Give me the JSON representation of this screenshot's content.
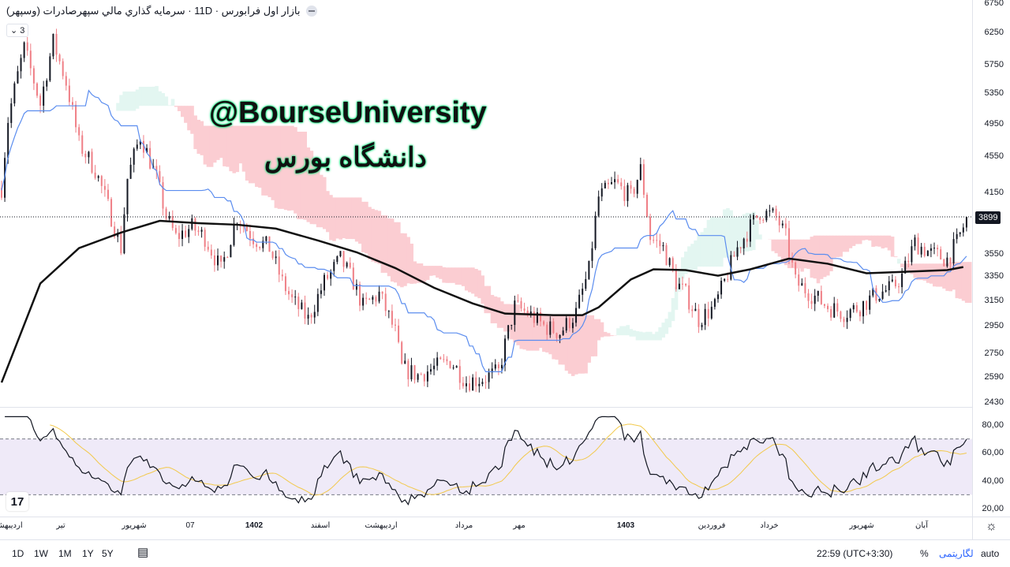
{
  "header": {
    "title": "بازار اول فرابورس · 11D · سرمايه گذاري مالي سپهرصادرات (وسپهر)",
    "indicator_count": "3"
  },
  "watermark": {
    "handle": "@BourseUniversity",
    "name": "دانشگاه بورس"
  },
  "price_axis": {
    "ticks": [
      "6750",
      "6250",
      "5750",
      "5350",
      "4950",
      "4550",
      "4150",
      "3550",
      "3350",
      "3150",
      "2950",
      "2750",
      "2590",
      "2430"
    ],
    "last_price": "3899"
  },
  "rsi_axis": {
    "ticks": [
      "80,00",
      "60,00",
      "40,00",
      "20,00"
    ]
  },
  "time_axis": {
    "labels": [
      {
        "t": "اردیبهشت",
        "bold": false
      },
      {
        "t": "تیر",
        "bold": false
      },
      {
        "t": "شهریور",
        "bold": false
      },
      {
        "t": "07",
        "bold": false
      },
      {
        "t": "1402",
        "bold": true
      },
      {
        "t": "اسفند",
        "bold": false
      },
      {
        "t": "اردیبهشت",
        "bold": false
      },
      {
        "t": "مرداد",
        "bold": false
      },
      {
        "t": "مهر",
        "bold": false
      },
      {
        "t": "1403",
        "bold": true
      },
      {
        "t": "فروردین",
        "bold": false
      },
      {
        "t": "خرداد",
        "bold": false
      },
      {
        "t": "شهریور",
        "bold": false
      },
      {
        "t": "آبان",
        "bold": false
      }
    ]
  },
  "bottom_bar": {
    "ranges": [
      "1D",
      "1W",
      "1M",
      "1Y",
      "5Y"
    ],
    "time": "22:59 (UTC+3:30)",
    "percent": "%",
    "log": "لگاریتمی",
    "auto": "auto"
  },
  "icons": [
    "collapse-icon",
    "settings-gear-icon",
    "go-to-date-calendar-icon",
    "tradingview-logo"
  ],
  "colors": {
    "up": "#131722",
    "down": "#ef7f86",
    "kijun": "#5b8def",
    "ma": "#111111",
    "cloud_up": "#e3f6f1",
    "cloud_down": "#fbcdd2",
    "rsi": "#131722",
    "rsi_ma": "#f2c94c",
    "rsi_band": "#efeaf8",
    "log_label": "#2962ff",
    "watermark_glow": "#00e676"
  },
  "chart_data": {
    "type": "candlestick",
    "y_scale": "log",
    "ylim": [
      2430,
      6750
    ],
    "grid": false,
    "last_price": 3899,
    "close_keypoints": [
      [
        0,
        4200
      ],
      [
        2,
        5000
      ],
      [
        7,
        6000
      ],
      [
        12,
        5200
      ],
      [
        16,
        6100
      ],
      [
        20,
        5500
      ],
      [
        24,
        4700
      ],
      [
        29,
        4400
      ],
      [
        34,
        3900
      ],
      [
        37,
        3600
      ],
      [
        39,
        4300
      ],
      [
        43,
        4800
      ],
      [
        48,
        4300
      ],
      [
        51,
        3900
      ],
      [
        54,
        3700
      ],
      [
        59,
        3800
      ],
      [
        63,
        3700
      ],
      [
        68,
        3400
      ],
      [
        73,
        3900
      ],
      [
        78,
        3700
      ],
      [
        83,
        3600
      ],
      [
        87,
        3300
      ],
      [
        90,
        3150
      ],
      [
        95,
        3000
      ],
      [
        100,
        3300
      ],
      [
        105,
        3500
      ],
      [
        109,
        3300
      ],
      [
        112,
        3100
      ],
      [
        117,
        3200
      ],
      [
        122,
        2900
      ],
      [
        124,
        2650
      ],
      [
        129,
        2600
      ],
      [
        134,
        2650
      ],
      [
        139,
        2700
      ],
      [
        144,
        2560
      ],
      [
        149,
        2580
      ],
      [
        154,
        2620
      ],
      [
        159,
        3100
      ],
      [
        163,
        3050
      ],
      [
        168,
        2950
      ],
      [
        173,
        2900
      ],
      [
        178,
        3050
      ],
      [
        182,
        3400
      ],
      [
        185,
        4100
      ],
      [
        190,
        4250
      ],
      [
        195,
        4100
      ],
      [
        198,
        4400
      ],
      [
        201,
        3700
      ],
      [
        205,
        3600
      ],
      [
        209,
        3300
      ],
      [
        212,
        3200
      ],
      [
        216,
        3000
      ],
      [
        221,
        3100
      ],
      [
        224,
        3300
      ],
      [
        228,
        3600
      ],
      [
        232,
        3800
      ],
      [
        235,
        3950
      ],
      [
        240,
        3900
      ],
      [
        243,
        3700
      ],
      [
        246,
        3300
      ],
      [
        251,
        3200
      ],
      [
        256,
        3100
      ],
      [
        261,
        3050
      ],
      [
        266,
        3100
      ],
      [
        271,
        3200
      ],
      [
        276,
        3250
      ],
      [
        279,
        3350
      ],
      [
        283,
        3650
      ],
      [
        288,
        3550
      ],
      [
        293,
        3500
      ],
      [
        296,
        3650
      ],
      [
        298,
        3800
      ]
    ],
    "moving_average": [
      [
        0,
        2553
      ],
      [
        12,
        3289
      ],
      [
        24,
        3600
      ],
      [
        37,
        3746
      ],
      [
        49,
        3860
      ],
      [
        61,
        3837
      ],
      [
        73,
        3822
      ],
      [
        85,
        3784
      ],
      [
        98,
        3671
      ],
      [
        110,
        3562
      ],
      [
        122,
        3421
      ],
      [
        134,
        3253
      ],
      [
        146,
        3125
      ],
      [
        156,
        3045
      ],
      [
        171,
        3033
      ],
      [
        180,
        3033
      ],
      [
        185,
        3094
      ],
      [
        195,
        3323
      ],
      [
        202,
        3410
      ],
      [
        212,
        3403
      ],
      [
        222,
        3355
      ],
      [
        232,
        3410
      ],
      [
        244,
        3505
      ],
      [
        256,
        3459
      ],
      [
        268,
        3376
      ],
      [
        280,
        3389
      ],
      [
        293,
        3403
      ],
      [
        298,
        3430
      ]
    ],
    "rsi": {
      "overbought": 70,
      "oversold": 30,
      "ylim": [
        15,
        88
      ]
    }
  }
}
